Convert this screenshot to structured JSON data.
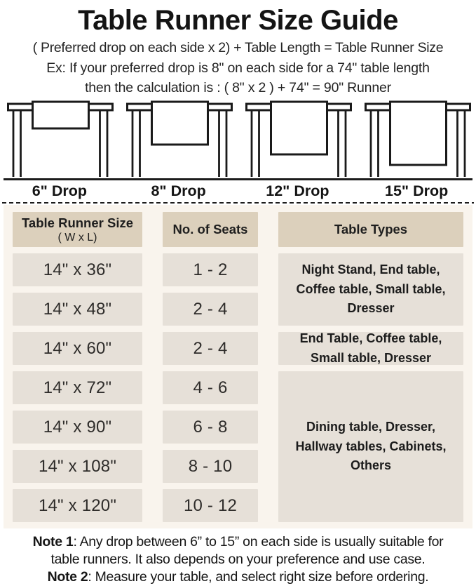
{
  "title": "Table Runner Size Guide",
  "intro": {
    "formula": "( Preferred drop on each side x 2) + Table Length = Table Runner Size",
    "example_line1": "Ex: If your preferred drop is 8\" on each side for a 74\" table length",
    "example_line2": "then the calculation is : ( 8\" x 2 ) + 74\" = 90\" Runner"
  },
  "figures": [
    {
      "label": "6\" Drop",
      "runner_h": 38
    },
    {
      "label": "8\" Drop",
      "runner_h": 61
    },
    {
      "label": "12\" Drop",
      "runner_h": 75
    },
    {
      "label": "15\" Drop",
      "runner_h": 90
    }
  ],
  "table": {
    "header_size_line1": "Table Runner Size",
    "header_size_line2": "( W x L)",
    "header_seats": "No. of Seats",
    "header_types": "Table Types",
    "rows": [
      {
        "size": "14\" x 36\"",
        "seats": "1 - 2"
      },
      {
        "size": "14\" x 48\"",
        "seats": "2 - 4"
      },
      {
        "size": "14\" x 60\"",
        "seats": "2 - 4"
      },
      {
        "size": "14\" x 72\"",
        "seats": "4 - 6"
      },
      {
        "size": "14\" x 90\"",
        "seats": "6 - 8"
      },
      {
        "size": "14\" x 108\"",
        "seats": "8 - 10"
      },
      {
        "size": "14\" x 120\"",
        "seats": "10 - 12"
      }
    ],
    "type_groups": [
      {
        "text": "Night Stand, End table, Coffee table, Small table, Dresser",
        "rows": "1-2"
      },
      {
        "text": "End Table, Coffee table, Small table, Dresser",
        "rows": "3"
      },
      {
        "text": "Dining table, Dresser, Hallway tables, Cabinets, Others",
        "rows": "4-7"
      }
    ]
  },
  "notes": {
    "n1_label": "Note 1",
    "n1_rest1": ": Any drop between 6” to 15” on each side is usually suitable for",
    "n1_rest2": "table runners. It also depends on your preference and use case.",
    "n2_label": "Note 2",
    "n2_rest": ": Measure your table, and select right size before ordering."
  },
  "colors": {
    "header_cell_bg": "#dcd0bc",
    "data_cell_bg": "#e6e0d8",
    "panel_bg": "#f9f4ed",
    "line_color": "#1c1c1c",
    "text_color": "#1d1d1d"
  }
}
